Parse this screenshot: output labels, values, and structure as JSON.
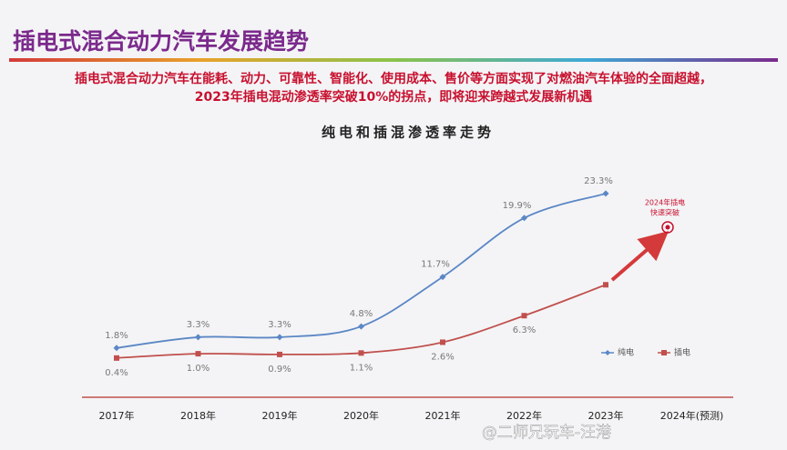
{
  "header": {
    "title": "插电式混合动力汽车发展趋势",
    "subtitle": [
      "插电式混合动力汽车在能耗、动力、可靠性、智能化、使用成本、售价等方面实现了对燃油汽车体验的全面超越，",
      "2023年插电混动渗透率突破10%的拐点，即将迎来跨越式发展新机遇"
    ]
  },
  "chart_data": {
    "type": "line",
    "title": "纯电和插混渗透率走势",
    "categories": [
      "2017年",
      "2018年",
      "2019年",
      "2020年",
      "2021年",
      "2022年",
      "2023年",
      "2024年(预测)"
    ],
    "series": [
      {
        "name": "纯电",
        "color": "#5b87c5",
        "values": [
          1.8,
          3.3,
          3.3,
          4.8,
          11.7,
          19.9,
          23.3,
          null
        ],
        "value_labels": [
          "1.8%",
          "3.3%",
          "3.3%",
          "4.8%",
          "11.7%",
          "19.9%",
          "23.3%",
          null
        ]
      },
      {
        "name": "插电",
        "color": "#c0504d",
        "values": [
          0.4,
          1.0,
          0.9,
          1.1,
          2.6,
          6.3,
          10.6,
          null
        ],
        "value_labels": [
          "0.4%",
          "1.0%",
          "0.9%",
          "1.1%",
          "2.6%",
          "6.3%",
          null,
          null
        ]
      }
    ],
    "annotation": [
      "2024年插电",
      "快速突破"
    ],
    "legend": "right"
  },
  "watermark": "@二师兄玩车-汪港"
}
